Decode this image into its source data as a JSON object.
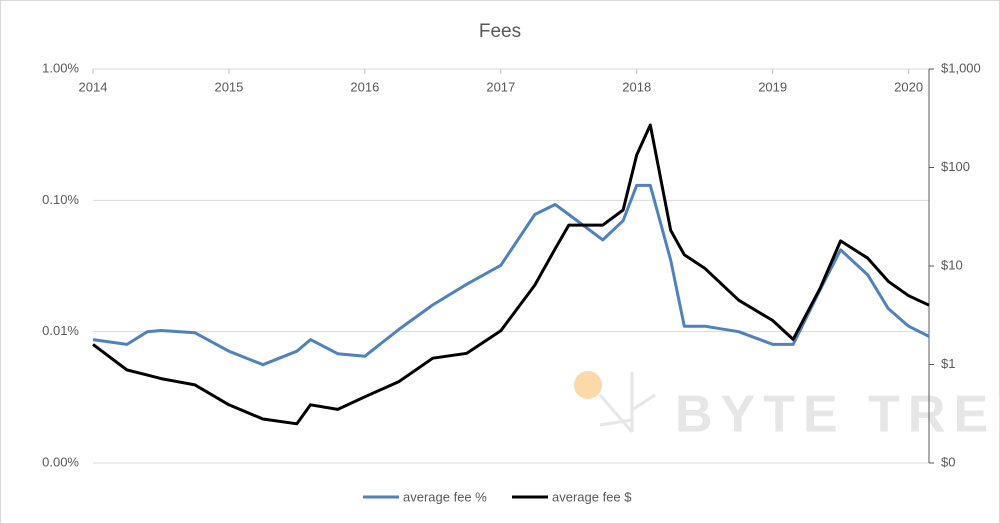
{
  "chart_data": {
    "type": "line",
    "title": "Fees",
    "x": [
      2014,
      2014.25,
      2014.4,
      2014.5,
      2014.75,
      2015,
      2015.25,
      2015.5,
      2015.6,
      2015.8,
      2016,
      2016.25,
      2016.5,
      2016.75,
      2017,
      2017.25,
      2017.4,
      2017.5,
      2017.75,
      2017.9,
      2018,
      2018.1,
      2018.25,
      2018.35,
      2018.5,
      2018.75,
      2019,
      2019.15,
      2019.35,
      2019.5,
      2019.7,
      2019.85,
      2020,
      2020.15
    ],
    "series": [
      {
        "name": "average fee %",
        "color": "#4f81bd",
        "values": [
          0.0087,
          0.008,
          0.01,
          0.0102,
          0.0098,
          0.0071,
          0.0056,
          0.0071,
          0.0087,
          0.0068,
          0.0065,
          0.0104,
          0.016,
          0.023,
          0.032,
          0.078,
          0.093,
          0.078,
          0.05,
          0.07,
          0.13,
          0.13,
          0.035,
          0.011,
          0.011,
          0.01,
          0.008,
          0.008,
          0.021,
          0.042,
          0.027,
          0.015,
          0.011,
          0.0092
        ]
      },
      {
        "name": "average fee $",
        "color": "#000000",
        "axis": "y2",
        "values": [
          1.6,
          0.88,
          0.78,
          0.72,
          0.62,
          0.39,
          0.28,
          0.25,
          0.39,
          0.35,
          0.47,
          0.67,
          1.16,
          1.3,
          2.2,
          6.4,
          15,
          26,
          26,
          37,
          134,
          270,
          23,
          13,
          9.5,
          4.5,
          2.8,
          1.8,
          6,
          18,
          12,
          7,
          5,
          4
        ]
      }
    ],
    "xlim": [
      2014,
      2020.15
    ],
    "xticks": [
      2014,
      2015,
      2016,
      2017,
      2018,
      2019,
      2020
    ],
    "ylim": [
      0.001,
      1
    ],
    "ylog": true,
    "yticks": [
      {
        "value": 0.001,
        "label": "0.00%"
      },
      {
        "value": 0.01,
        "label": "0.01%"
      },
      {
        "value": 0.1,
        "label": "0.10%"
      },
      {
        "value": 1,
        "label": "1.00%"
      }
    ],
    "y2lim": [
      0.1,
      1000
    ],
    "y2log": true,
    "y2ticks": [
      {
        "value": 0.1,
        "label": "$0"
      },
      {
        "value": 1,
        "label": "$1"
      },
      {
        "value": 10,
        "label": "$10"
      },
      {
        "value": 100,
        "label": "$100"
      },
      {
        "value": 1000,
        "label": "$1,000"
      }
    ],
    "grid": true,
    "legend": "bottom",
    "watermark": "BYTE TREE"
  }
}
